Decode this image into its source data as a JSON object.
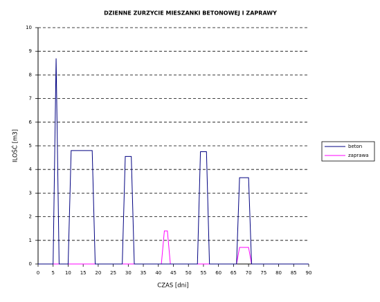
{
  "chart_data": {
    "type": "line",
    "title": "DZIENNE ZURZYCIE MIESZANKI  BETONOWEJ I ZAPRAWY",
    "xlabel": "CZAS [dni]",
    "ylabel": "ILOŚĆ [m3]",
    "xlim": [
      0,
      90
    ],
    "ylim": [
      0,
      10
    ],
    "xticks": [
      0,
      5,
      10,
      15,
      20,
      25,
      30,
      35,
      40,
      45,
      50,
      55,
      60,
      65,
      70,
      75,
      80,
      85,
      90
    ],
    "yticks": [
      0,
      1,
      2,
      3,
      4,
      5,
      6,
      7,
      8,
      9,
      10
    ],
    "grid": true,
    "legend": "right",
    "series": [
      {
        "name": "beton",
        "color": "#000080",
        "x": [
          0,
          5,
          6,
          7,
          10,
          11,
          18,
          19,
          28,
          29,
          31,
          32,
          53,
          54,
          56,
          57,
          66,
          67,
          70,
          71,
          90
        ],
        "values": [
          0,
          0,
          8.7,
          0,
          0,
          4.8,
          4.8,
          0,
          0,
          4.55,
          4.55,
          0,
          0,
          4.75,
          4.75,
          0,
          0,
          3.65,
          3.65,
          0,
          0
        ]
      },
      {
        "name": "zaprawa",
        "color": "#ff00ff",
        "x": [
          0,
          41,
          42,
          43,
          44,
          66,
          67,
          70,
          71,
          90
        ],
        "values": [
          0,
          0,
          1.4,
          1.4,
          0,
          0,
          0.7,
          0.7,
          0,
          0
        ]
      }
    ]
  }
}
